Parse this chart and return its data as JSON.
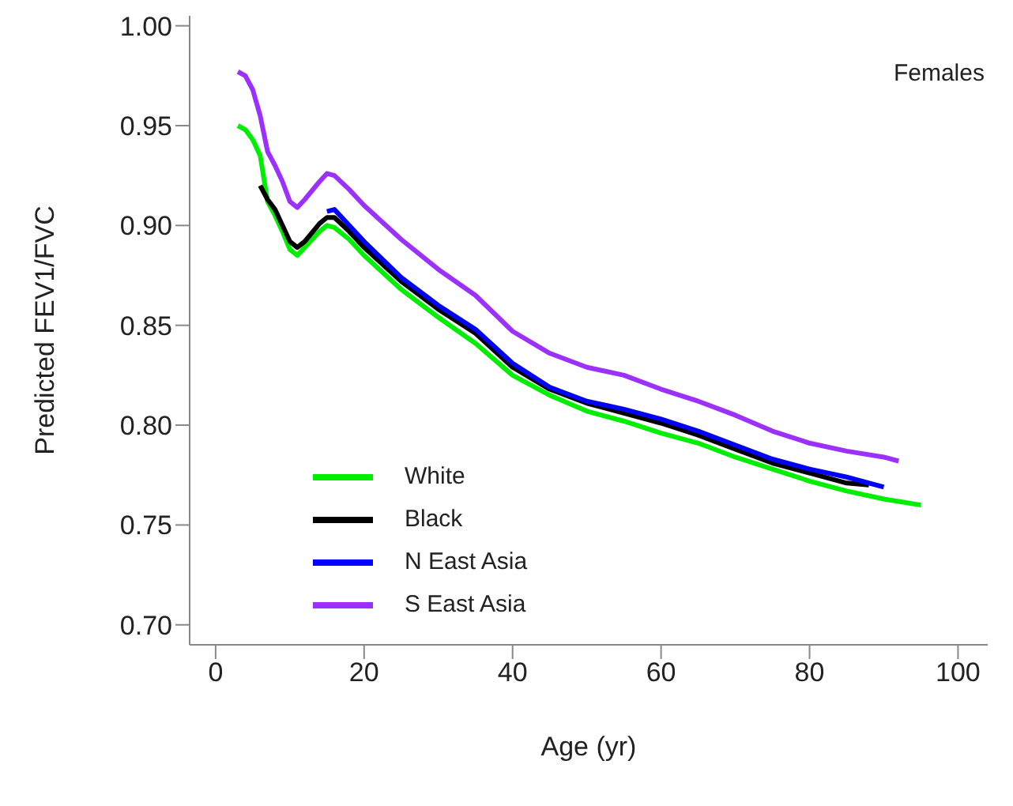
{
  "chart_data": {
    "type": "line",
    "xlabel": "Age (yr)",
    "ylabel": "Predicted FEV1/FVC",
    "annotations": [
      "Females"
    ],
    "xlim": [
      -3.5,
      104
    ],
    "xticks": [
      0,
      20,
      40,
      60,
      80,
      100
    ],
    "ylim": [
      0.69,
      1.005
    ],
    "yticks": [
      {
        "value": 0.7,
        "label": "0.70"
      },
      0.75,
      {
        "value": 0.8,
        "label": "0.80"
      },
      0.85,
      {
        "value": 0.9,
        "label": "0.90"
      },
      0.95,
      {
        "value": 1.0,
        "label": "1.00"
      }
    ],
    "grid": false,
    "legend": "bottom left",
    "marker": "none",
    "line_style": "solid",
    "series": [
      {
        "name": "White",
        "color": "#00ee00",
        "x": [
          3,
          4,
          5,
          6,
          7,
          8,
          9,
          10,
          11,
          12,
          14,
          15,
          16,
          18,
          20,
          25,
          30,
          35,
          40,
          45,
          50,
          55,
          60,
          65,
          70,
          75,
          80,
          85,
          90,
          95
        ],
        "values": [
          0.95,
          0.948,
          0.943,
          0.935,
          0.912,
          0.905,
          0.897,
          0.888,
          0.885,
          0.889,
          0.897,
          0.9,
          0.899,
          0.893,
          0.885,
          0.868,
          0.854,
          0.841,
          0.825,
          0.815,
          0.807,
          0.802,
          0.796,
          0.791,
          0.784,
          0.778,
          0.772,
          0.767,
          0.763,
          0.76
        ]
      },
      {
        "name": "Black",
        "color": "#000000",
        "x": [
          6,
          7,
          8,
          9,
          10,
          11,
          12,
          14,
          15,
          16,
          18,
          20,
          25,
          30,
          35,
          40,
          45,
          50,
          55,
          60,
          65,
          70,
          75,
          80,
          85,
          88
        ],
        "values": [
          0.92,
          0.913,
          0.908,
          0.9,
          0.892,
          0.889,
          0.892,
          0.901,
          0.904,
          0.904,
          0.897,
          0.889,
          0.872,
          0.858,
          0.846,
          0.829,
          0.818,
          0.811,
          0.806,
          0.801,
          0.795,
          0.788,
          0.781,
          0.776,
          0.771,
          0.77
        ]
      },
      {
        "name": "N East Asia",
        "color": "#0000ff",
        "x": [
          15,
          16,
          18,
          20,
          25,
          30,
          35,
          40,
          45,
          50,
          55,
          60,
          65,
          70,
          75,
          80,
          85,
          90
        ],
        "values": [
          0.907,
          0.908,
          0.9,
          0.892,
          0.874,
          0.86,
          0.848,
          0.831,
          0.819,
          0.812,
          0.808,
          0.803,
          0.797,
          0.79,
          0.783,
          0.778,
          0.774,
          0.769
        ]
      },
      {
        "name": "S East Asia",
        "color": "#9b30ff",
        "x": [
          3,
          4,
          5,
          6,
          7,
          8,
          9,
          10,
          11,
          12,
          14,
          15,
          16,
          18,
          20,
          25,
          30,
          35,
          40,
          45,
          50,
          55,
          60,
          65,
          70,
          75,
          80,
          85,
          90,
          92
        ],
        "values": [
          0.977,
          0.975,
          0.968,
          0.955,
          0.937,
          0.93,
          0.922,
          0.912,
          0.909,
          0.913,
          0.922,
          0.926,
          0.925,
          0.918,
          0.91,
          0.893,
          0.878,
          0.865,
          0.847,
          0.836,
          0.829,
          0.825,
          0.818,
          0.812,
          0.805,
          0.797,
          0.791,
          0.787,
          0.784,
          0.782
        ]
      }
    ]
  }
}
